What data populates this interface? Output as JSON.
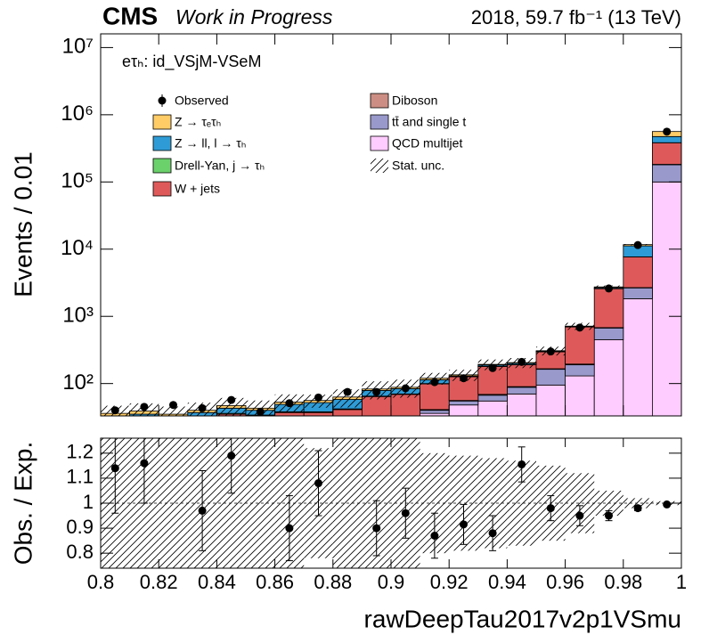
{
  "chart_data": [
    {
      "type": "histogram",
      "cms_label": "CMS",
      "subtitle": "Work in Progress",
      "lumi": "2018, 59.7 fb⁻¹ (13 TeV)",
      "channel": "eτₕ: id_VSjM-VSeM",
      "ylabel": "Events / 0.01",
      "log_scale": true,
      "bins": [
        0.8,
        0.81,
        0.82,
        0.83,
        0.84,
        0.85,
        0.86,
        0.87,
        0.88,
        0.89,
        0.9,
        0.91,
        0.92,
        0.93,
        0.94,
        0.95,
        0.96,
        0.97,
        0.98,
        0.99,
        1
      ],
      "xlim": [
        0.8,
        1
      ],
      "xticks": [
        0.8,
        0.82,
        0.84,
        0.86,
        0.88,
        0.9,
        0.92,
        0.94,
        0.96,
        0.98,
        1
      ],
      "ylim": [
        33,
        16000000
      ],
      "yticks": [
        {
          "value": 100,
          "label": "10²"
        },
        {
          "value": 1000,
          "label": "10³"
        },
        {
          "value": 10000,
          "label": "10⁴"
        },
        {
          "value": 100000,
          "label": "10⁵"
        },
        {
          "value": 1000000,
          "label": "10⁶"
        },
        {
          "value": 10000000,
          "label": "10⁷"
        }
      ],
      "series": [
        {
          "name": "QCD multijet",
          "color": "#ffccff",
          "values": [
            0,
            0,
            0,
            0,
            0,
            0,
            0,
            0,
            0,
            0,
            0,
            36,
            48,
            55,
            70,
            95,
            130,
            450,
            1830,
            100000
          ]
        },
        {
          "name": "tt̄ and single t",
          "color": "#9999cc",
          "values": [
            2,
            2,
            2,
            2,
            2,
            2,
            2,
            2,
            2,
            3,
            3,
            4,
            7,
            12,
            18,
            68,
            60,
            220,
            820,
            80000
          ]
        },
        {
          "name": "Diboson",
          "color": "#cc8e84",
          "values": [
            1,
            1,
            1,
            1,
            1,
            1,
            1,
            1,
            1,
            1,
            1,
            1,
            1,
            2,
            2,
            3,
            5,
            10,
            30,
            3000
          ]
        },
        {
          "name": "W + jets",
          "color": "#de5a5a",
          "values": [
            25,
            27,
            26,
            28,
            32,
            30,
            34,
            34,
            38,
            60,
            65,
            58,
            70,
            110,
            100,
            130,
            500,
            1900,
            5000,
            200000
          ]
        },
        {
          "name": "Drell-Yan, j → τₕ",
          "color": "#6bd16b",
          "values": [
            1,
            1,
            1,
            1,
            1,
            1,
            1,
            1,
            1,
            1,
            1,
            1,
            1,
            1,
            1,
            1,
            2,
            5,
            5,
            1000
          ]
        },
        {
          "name": "Z → ll, l → τₕ",
          "color": "#2e9bd6",
          "values": [
            4,
            4,
            3,
            5,
            7,
            6,
            11,
            14,
            16,
            14,
            14,
            14,
            3,
            8,
            8,
            6,
            10,
            80,
            3500,
            90000
          ]
        },
        {
          "name": "Z → τₑτₕ",
          "color": "#ffcc66",
          "values": [
            3,
            4,
            2,
            3,
            4,
            3,
            4,
            4,
            5,
            4,
            4,
            6,
            5,
            5,
            6,
            5,
            8,
            75,
            500,
            89000
          ]
        }
      ],
      "observed": {
        "name": "Observed",
        "values": [
          40,
          45,
          48,
          43,
          57,
          38,
          51,
          62,
          75,
          75,
          85,
          105,
          120,
          170,
          210,
          300,
          680,
          2600,
          11500,
          560000
        ]
      },
      "stat_unc_name": "Stat. unc."
    },
    {
      "type": "ratio",
      "ylabel": "Obs. / Exp.",
      "xlabel": "rawDeepTau2017v2p1VSmu",
      "xlim": [
        0.8,
        1
      ],
      "xticks": [
        0.8,
        0.82,
        0.84,
        0.86,
        0.88,
        0.9,
        0.92,
        0.94,
        0.96,
        0.98,
        1
      ],
      "ylim": [
        0.74,
        1.26
      ],
      "yticks": [
        0.8,
        0.9,
        1,
        1.1,
        1.2
      ],
      "reference_line": 1,
      "x": [
        0.805,
        0.815,
        0.825,
        0.835,
        0.845,
        0.855,
        0.865,
        0.875,
        0.885,
        0.895,
        0.905,
        0.915,
        0.925,
        0.935,
        0.945,
        0.955,
        0.965,
        0.975,
        0.985,
        0.995
      ],
      "values": [
        1.14,
        1.16,
        null,
        0.97,
        1.19,
        null,
        0.9,
        1.08,
        null,
        0.9,
        0.96,
        0.87,
        0.915,
        0.88,
        1.155,
        0.98,
        0.95,
        0.95,
        0.98,
        0.995
      ],
      "errors": [
        0.18,
        0.16,
        null,
        0.16,
        0.15,
        null,
        0.13,
        0.13,
        null,
        0.11,
        0.1,
        0.09,
        0.08,
        0.07,
        0.07,
        0.05,
        0.04,
        0.02,
        0.01,
        0.005
      ],
      "stat_unc": [
        0.3,
        0.3,
        0.3,
        0.3,
        0.3,
        0.3,
        0.3,
        0.22,
        0.3,
        0.3,
        0.3,
        0.2,
        0.19,
        0.18,
        0.17,
        0.15,
        0.12,
        0.05,
        0.02,
        0.008
      ]
    }
  ]
}
